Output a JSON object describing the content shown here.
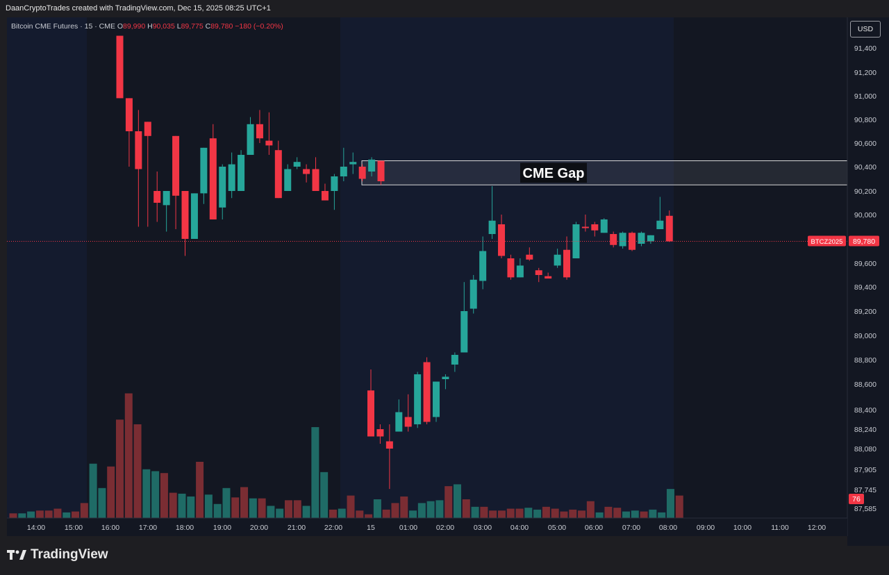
{
  "header": "DaanCryptoTrades created with TradingView.com, Dec 15, 2025 08:25 UTC+1",
  "legend": {
    "symbol": "Bitcoin CME Futures · 15 · CME",
    "open_label": "O",
    "open": "89,990",
    "high_label": "H",
    "high": "90,035",
    "low_label": "L",
    "low": "89,775",
    "close_label": "C",
    "close": "89,780",
    "change": "−180 (−0.20%)"
  },
  "currency_button": "USD",
  "annotation_label": "CME Gap",
  "price_tag": {
    "symbol": "BTCZ2025",
    "price": "89,780"
  },
  "volume_tag": "76",
  "brand": "TradingView",
  "colors": {
    "up": "#26a69a",
    "down": "#f23645",
    "vol_up": "#1f6b66",
    "vol_down": "#7a2d33",
    "background": "#131722",
    "session": "#141b2e"
  },
  "chart_data": {
    "type": "candlestick",
    "price_axis_ticks": [
      "91,400",
      "91,200",
      "91,000",
      "90,800",
      "90,600",
      "90,400",
      "90,200",
      "90,000",
      "89,600",
      "89,400",
      "89,200",
      "89,000",
      "88,800",
      "88,600",
      "88,400",
      "88,240",
      "88,080",
      "87,905",
      "87,745",
      "87,585"
    ],
    "time_axis_ticks": [
      "14:00",
      "15:00",
      "16:00",
      "17:00",
      "18:00",
      "19:00",
      "20:00",
      "21:00",
      "22:00",
      "15",
      "01:00",
      "02:00",
      "03:00",
      "04:00",
      "05:00",
      "06:00",
      "07:00",
      "08:00",
      "09:00",
      "10:00",
      "11:00",
      "12:00"
    ],
    "gap": {
      "low": 90250,
      "high": 90450,
      "label": "CME Gap"
    },
    "last_price": 89780,
    "candles": [
      {
        "o": 91500,
        "h": 91500,
        "l": 90980,
        "c": 90980
      },
      {
        "o": 90980,
        "h": 90980,
        "l": 90400,
        "c": 90700
      },
      {
        "o": 90700,
        "h": 90880,
        "l": 89900,
        "c": 90380
      },
      {
        "o": 90780,
        "h": 90780,
        "l": 89900,
        "c": 90660
      },
      {
        "o": 90200,
        "h": 90360,
        "l": 89940,
        "c": 90100
      },
      {
        "o": 90080,
        "h": 90200,
        "l": 89860,
        "c": 90200
      },
      {
        "o": 90660,
        "h": 90660,
        "l": 89880,
        "c": 90160
      },
      {
        "o": 90200,
        "h": 90200,
        "l": 89660,
        "c": 89800
      },
      {
        "o": 89800,
        "h": 90180,
        "l": 89800,
        "c": 90180
      },
      {
        "o": 90180,
        "h": 90560,
        "l": 90090,
        "c": 90560
      },
      {
        "o": 90640,
        "h": 90760,
        "l": 89960,
        "c": 89960
      },
      {
        "o": 90060,
        "h": 90420,
        "l": 89960,
        "c": 90400
      },
      {
        "o": 90200,
        "h": 90520,
        "l": 90140,
        "c": 90420
      },
      {
        "o": 90200,
        "h": 90540,
        "l": 90200,
        "c": 90500
      },
      {
        "o": 90500,
        "h": 90820,
        "l": 90500,
        "c": 90760
      },
      {
        "o": 90760,
        "h": 90880,
        "l": 90600,
        "c": 90640
      },
      {
        "o": 90620,
        "h": 90860,
        "l": 90500,
        "c": 90580
      },
      {
        "o": 90540,
        "h": 90620,
        "l": 90140,
        "c": 90140
      },
      {
        "o": 90200,
        "h": 90420,
        "l": 90200,
        "c": 90380
      },
      {
        "o": 90400,
        "h": 90480,
        "l": 90380,
        "c": 90440
      },
      {
        "o": 90380,
        "h": 90420,
        "l": 90270,
        "c": 90340
      },
      {
        "o": 90380,
        "h": 90480,
        "l": 90200,
        "c": 90200
      },
      {
        "o": 90200,
        "h": 90260,
        "l": 90140,
        "c": 90120
      },
      {
        "o": 90200,
        "h": 90340,
        "l": 90040,
        "c": 90320
      },
      {
        "o": 90320,
        "h": 90560,
        "l": 90280,
        "c": 90400
      },
      {
        "o": 90420,
        "h": 90520,
        "l": 90340,
        "c": 90440
      },
      {
        "o": 90400,
        "h": 90420,
        "l": 90280,
        "c": 90300
      },
      {
        "o": 90360,
        "h": 90480,
        "l": 90320,
        "c": 90460
      },
      {
        "o": 90450,
        "h": 90450,
        "l": 90250,
        "c": 90280
      },
      {
        "o": 88550,
        "h": 88720,
        "l": 88180,
        "c": 88180
      },
      {
        "o": 88240,
        "h": 88280,
        "l": 88120,
        "c": 88180
      },
      {
        "o": 88140,
        "h": 88280,
        "l": 87750,
        "c": 88080
      },
      {
        "o": 88220,
        "h": 88480,
        "l": 88220,
        "c": 88380
      },
      {
        "o": 88340,
        "h": 88520,
        "l": 88220,
        "c": 88260
      },
      {
        "o": 88280,
        "h": 88700,
        "l": 88250,
        "c": 88680
      },
      {
        "o": 88780,
        "h": 88820,
        "l": 88280,
        "c": 88300
      },
      {
        "o": 88340,
        "h": 88620,
        "l": 88300,
        "c": 88620
      },
      {
        "o": 88640,
        "h": 88680,
        "l": 88560,
        "c": 88660
      },
      {
        "o": 88760,
        "h": 88860,
        "l": 88700,
        "c": 88840
      },
      {
        "o": 88860,
        "h": 89440,
        "l": 88860,
        "c": 89200
      },
      {
        "o": 89220,
        "h": 89500,
        "l": 89180,
        "c": 89460
      },
      {
        "o": 89450,
        "h": 89820,
        "l": 89380,
        "c": 89700
      },
      {
        "o": 89840,
        "h": 90240,
        "l": 89800,
        "c": 89950
      },
      {
        "o": 89920,
        "h": 90000,
        "l": 89640,
        "c": 89660
      },
      {
        "o": 89640,
        "h": 89670,
        "l": 89460,
        "c": 89480
      },
      {
        "o": 89480,
        "h": 89640,
        "l": 89480,
        "c": 89580
      },
      {
        "o": 89670,
        "h": 89730,
        "l": 89620,
        "c": 89630
      },
      {
        "o": 89540,
        "h": 89560,
        "l": 89440,
        "c": 89500
      },
      {
        "o": 89490,
        "h": 89520,
        "l": 89480,
        "c": 89470
      },
      {
        "o": 89580,
        "h": 89720,
        "l": 89560,
        "c": 89670
      },
      {
        "o": 89710,
        "h": 89820,
        "l": 89460,
        "c": 89480
      },
      {
        "o": 89640,
        "h": 89940,
        "l": 89640,
        "c": 89920
      },
      {
        "o": 89900,
        "h": 90000,
        "l": 89860,
        "c": 89890
      },
      {
        "o": 89920,
        "h": 89940,
        "l": 89820,
        "c": 89870
      },
      {
        "o": 89850,
        "h": 89970,
        "l": 89850,
        "c": 89960
      },
      {
        "o": 89840,
        "h": 89860,
        "l": 89730,
        "c": 89750
      },
      {
        "o": 89740,
        "h": 89860,
        "l": 89720,
        "c": 89850
      },
      {
        "o": 89850,
        "h": 89860,
        "l": 89700,
        "c": 89710
      },
      {
        "o": 89760,
        "h": 89860,
        "l": 89740,
        "c": 89850
      },
      {
        "o": 89780,
        "h": 89830,
        "l": 89760,
        "c": 89830
      },
      {
        "o": 89880,
        "h": 90150,
        "l": 89880,
        "c": 89950
      },
      {
        "o": 89990,
        "h": 90035,
        "l": 89775,
        "c": 89780
      }
    ],
    "volume": [
      {
        "v": 5,
        "up": false
      },
      {
        "v": 5,
        "up": true
      },
      {
        "v": 7,
        "up": true
      },
      {
        "v": 8,
        "up": false
      },
      {
        "v": 8,
        "up": false
      },
      {
        "v": 10,
        "up": false
      },
      {
        "v": 6,
        "up": true
      },
      {
        "v": 7,
        "up": false
      },
      {
        "v": 16,
        "up": false
      },
      {
        "v": 58,
        "up": true
      },
      {
        "v": 32,
        "up": true
      },
      {
        "v": 55,
        "up": false
      },
      {
        "v": 105,
        "up": false
      },
      {
        "v": 133,
        "up": false
      },
      {
        "v": 100,
        "up": false
      },
      {
        "v": 52,
        "up": true
      },
      {
        "v": 50,
        "up": true
      },
      {
        "v": 48,
        "up": false
      },
      {
        "v": 27,
        "up": false
      },
      {
        "v": 26,
        "up": true
      },
      {
        "v": 23,
        "up": true
      },
      {
        "v": 60,
        "up": false
      },
      {
        "v": 25,
        "up": true
      },
      {
        "v": 15,
        "up": true
      },
      {
        "v": 32,
        "up": true
      },
      {
        "v": 22,
        "up": false
      },
      {
        "v": 33,
        "up": false
      },
      {
        "v": 21,
        "up": true
      },
      {
        "v": 21,
        "up": false
      },
      {
        "v": 13,
        "up": true
      },
      {
        "v": 10,
        "up": true
      },
      {
        "v": 19,
        "up": false
      },
      {
        "v": 19,
        "up": false
      },
      {
        "v": 13,
        "up": true
      },
      {
        "v": 97,
        "up": true
      },
      {
        "v": 49,
        "up": true
      },
      {
        "v": 9,
        "up": false
      },
      {
        "v": 10,
        "up": true
      },
      {
        "v": 24,
        "up": false
      },
      {
        "v": 8,
        "up": false
      },
      {
        "v": 4,
        "up": false
      },
      {
        "v": 20,
        "up": true
      },
      {
        "v": 9,
        "up": false
      },
      {
        "v": 16,
        "up": false
      },
      {
        "v": 23,
        "up": false
      },
      {
        "v": 8,
        "up": true
      },
      {
        "v": 16,
        "up": true
      },
      {
        "v": 18,
        "up": true
      },
      {
        "v": 19,
        "up": true
      },
      {
        "v": 34,
        "up": false
      },
      {
        "v": 36,
        "up": true
      },
      {
        "v": 20,
        "up": false
      },
      {
        "v": 12,
        "up": true
      },
      {
        "v": 12,
        "up": false
      },
      {
        "v": 8,
        "up": false
      },
      {
        "v": 8,
        "up": false
      },
      {
        "v": 10,
        "up": false
      },
      {
        "v": 10,
        "up": false
      },
      {
        "v": 11,
        "up": true
      },
      {
        "v": 9,
        "up": true
      },
      {
        "v": 12,
        "up": false
      },
      {
        "v": 10,
        "up": false
      },
      {
        "v": 7,
        "up": false
      },
      {
        "v": 9,
        "up": false
      },
      {
        "v": 8,
        "up": false
      },
      {
        "v": 18,
        "up": false
      },
      {
        "v": 6,
        "up": true
      },
      {
        "v": 12,
        "up": false
      },
      {
        "v": 11,
        "up": false
      },
      {
        "v": 7,
        "up": true
      },
      {
        "v": 8,
        "up": true
      },
      {
        "v": 7,
        "up": false
      },
      {
        "v": 9,
        "up": true
      },
      {
        "v": 6,
        "up": true
      },
      {
        "v": 31,
        "up": true
      },
      {
        "v": 24,
        "up": false
      }
    ]
  }
}
